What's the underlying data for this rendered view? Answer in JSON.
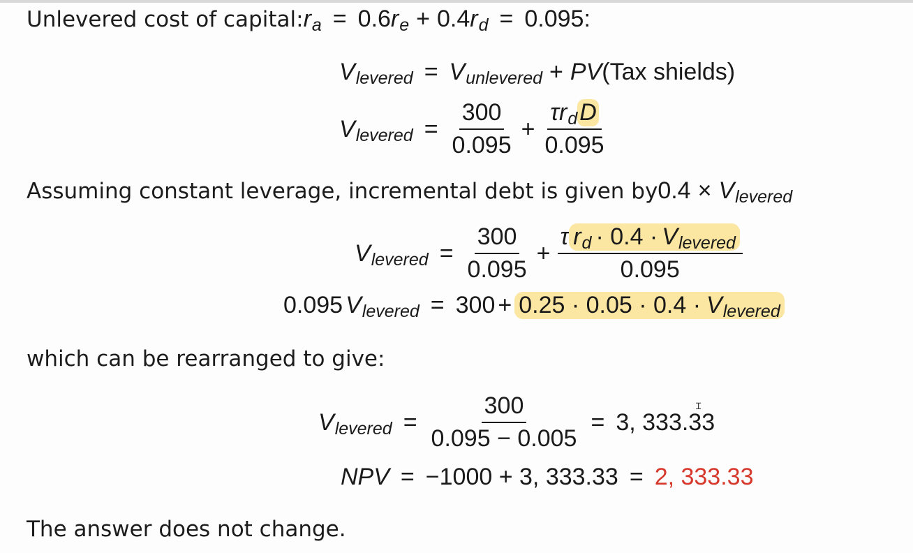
{
  "lines": {
    "unlevered_label": "Unlevered cost of capital: ",
    "constant_leverage_text": "Assuming constant leverage, incremental debt is given by ",
    "rearranged_text": "which can be rearranged to give:",
    "conclusion_text": "The answer does not change."
  },
  "eq_unlevered": {
    "ra": "r",
    "ra_sub": "a",
    "coef_e": "0.6",
    "re": "r",
    "re_sub": "e",
    "coef_d": "0.4",
    "rd": "r",
    "rd_sub": "d",
    "result": "0.095:"
  },
  "eq1": {
    "lhs": "V",
    "lhs_sub": "levered",
    "v_unlev": "V",
    "v_unlev_sub": "unlevered",
    "pv": "PV",
    "pv_arg": "(Tax shields)"
  },
  "eq2": {
    "lhs": "V",
    "lhs_sub": "levered",
    "num1": "300",
    "den1": "0.095",
    "tau": "τ",
    "r": "r",
    "r_sub": "d",
    "D": "D",
    "den2": "0.095"
  },
  "leverage_expr": {
    "factor": "0.4",
    "times": "×",
    "v": "V",
    "v_sub": "levered"
  },
  "eq3": {
    "lhs": "V",
    "lhs_sub": "levered",
    "num1": "300",
    "den1": "0.095",
    "tau": "τ",
    "r": "r",
    "r_sub": "d",
    "num2_rest": "· 0.4 ·",
    "v": "V",
    "v_sub": "levered",
    "den2": "0.095"
  },
  "eq4": {
    "lhs_coef": "0.095",
    "lhs_v": "V",
    "lhs_sub": "levered",
    "rhs_const": "300",
    "product": "0.25 · 0.05 · 0.4 ·",
    "v": "V",
    "v_sub": "levered"
  },
  "eq5": {
    "lhs": "V",
    "lhs_sub": "levered",
    "num": "300",
    "den": "0.095 − 0.005",
    "result": "3, 333.33"
  },
  "eq6": {
    "lhs": "NPV",
    "expr": "−1000 + 3, 333.33",
    "result": "2, 333.33"
  },
  "colors": {
    "highlight": "#fbe6a2",
    "answer_red": "#d6382c"
  },
  "cursor": {
    "icon": "text-cursor-icon",
    "glyph": "Ɪ"
  }
}
